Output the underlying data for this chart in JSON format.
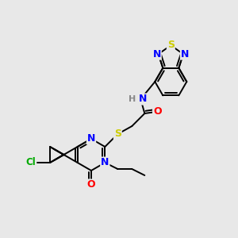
{
  "bg": "#e8e8e8",
  "bond_color": "#000000",
  "C": "#000000",
  "N": "#0000ff",
  "O": "#ff0000",
  "S": "#cccc00",
  "Cl": "#00aa00",
  "H": "#888888",
  "figsize": [
    3.0,
    3.0
  ],
  "dpi": 100
}
